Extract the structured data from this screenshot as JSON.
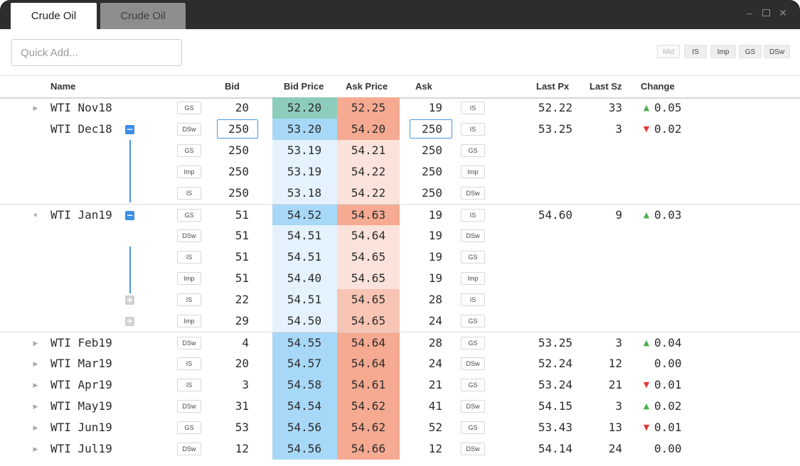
{
  "tabs": [
    {
      "label": "Crude Oil",
      "active": true
    },
    {
      "label": "Crude Oil",
      "active": false
    }
  ],
  "window_controls": [
    "minimize-icon",
    "maximize-icon",
    "close-icon"
  ],
  "toolbar": {
    "quick_add_placeholder": "Quick Add...",
    "source_buttons": [
      "Mid",
      "IS",
      "Imp",
      "GS",
      "DSw"
    ]
  },
  "columns": {
    "name": "Name",
    "bid": "Bid",
    "bid_price": "Bid Price",
    "ask_price": "Ask Price",
    "ask": "Ask",
    "last_px": "Last Px",
    "last_sz": "Last Sz",
    "change": "Change"
  },
  "colors": {
    "bid_dark": "#a8d8f8",
    "bid_light": "#e4f2fd",
    "bid_selected": "#8dcbbd",
    "ask_dark": "#f6aa92",
    "ask_light": "#fbe2da",
    "accent": "#4a96e3",
    "up": "#4caf50",
    "down": "#e53935"
  },
  "rows": [
    {
      "name": "WTI Nov18",
      "arrow": "collapsed",
      "bid_src": "GS",
      "bid": "20",
      "bid_price": "52.20",
      "ask_price": "52.25",
      "ask": "19",
      "ask_src": "IS",
      "last_px": "52.22",
      "last_sz": "33",
      "change": "0.05",
      "dir": "up",
      "bid_shade": "selected",
      "ask_shade": "dark",
      "sep": false
    },
    {
      "name": "WTI Dec18",
      "toggle": "minus",
      "bid_src": "DSw",
      "bid": "250",
      "bid_price": "53.20",
      "ask_price": "54.20",
      "ask": "250",
      "ask_src": "IS",
      "last_px": "53.25",
      "last_sz": "3",
      "change": "0.02",
      "dir": "down",
      "bid_shade": "dark",
      "ask_shade": "dark",
      "bid_edit": true,
      "ask_edit": true,
      "sep": false
    },
    {
      "name": "",
      "bid_src": "GS",
      "bid": "250",
      "bid_price": "53.19",
      "ask_price": "54.21",
      "ask": "250",
      "ask_src": "GS",
      "bid_shade": "light",
      "ask_shade": "light",
      "sep": false
    },
    {
      "name": "",
      "bid_src": "Imp",
      "bid": "250",
      "bid_price": "53.19",
      "ask_price": "54.22",
      "ask": "250",
      "ask_src": "Imp",
      "bid_shade": "light",
      "ask_shade": "light",
      "sep": false
    },
    {
      "name": "",
      "bid_src": "IS",
      "bid": "250",
      "bid_price": "53.18",
      "ask_price": "54.22",
      "ask": "250",
      "ask_src": "DSw",
      "bid_shade": "light",
      "ask_shade": "light",
      "sep": false
    },
    {
      "name": "WTI Jan19",
      "arrow": "expanded",
      "toggle": "minus",
      "bid_src": "GS",
      "bid": "51",
      "bid_price": "54.52",
      "ask_price": "54.63",
      "ask": "19",
      "ask_src": "IS",
      "last_px": "54.60",
      "last_sz": "9",
      "change": "0.03",
      "dir": "up",
      "bid_shade": "dark",
      "ask_shade": "dark",
      "sep": true
    },
    {
      "name": "",
      "bid_src": "DSw",
      "bid": "51",
      "bid_price": "54.51",
      "ask_price": "54.64",
      "ask": "19",
      "ask_src": "DSw",
      "bid_shade": "light",
      "ask_shade": "light",
      "sep": false
    },
    {
      "name": "",
      "bid_src": "IS",
      "bid": "51",
      "bid_price": "54.51",
      "ask_price": "54.65",
      "ask": "19",
      "ask_src": "GS",
      "bid_shade": "light",
      "ask_shade": "light",
      "sep": false
    },
    {
      "name": "",
      "bid_src": "Imp",
      "bid": "51",
      "bid_price": "54.40",
      "ask_price": "54.65",
      "ask": "19",
      "ask_src": "Imp",
      "bid_shade": "light",
      "ask_shade": "light",
      "sep": false
    },
    {
      "name": "",
      "toggle": "plus",
      "bid_src": "IS",
      "bid": "22",
      "bid_price": "54.51",
      "ask_price": "54.65",
      "ask": "28",
      "ask_src": "IS",
      "bid_shade": "light",
      "ask_shade": "mid",
      "sep": false
    },
    {
      "name": "",
      "toggle": "plus",
      "bid_src": "Imp",
      "bid": "29",
      "bid_price": "54.50",
      "ask_price": "54.65",
      "ask": "24",
      "ask_src": "GS",
      "bid_shade": "light",
      "ask_shade": "mid",
      "sep": false
    },
    {
      "name": "WTI Feb19",
      "arrow": "collapsed",
      "bid_src": "DSw",
      "bid": "4",
      "bid_price": "54.55",
      "ask_price": "54.64",
      "ask": "28",
      "ask_src": "GS",
      "last_px": "53.25",
      "last_sz": "3",
      "change": "0.04",
      "dir": "up",
      "bid_shade": "dark",
      "ask_shade": "dark",
      "sep": true
    },
    {
      "name": "WTI Mar19",
      "arrow": "collapsed",
      "bid_src": "IS",
      "bid": "20",
      "bid_price": "54.57",
      "ask_price": "54.64",
      "ask": "24",
      "ask_src": "DSw",
      "last_px": "52.24",
      "last_sz": "12",
      "change": "0.00",
      "dir": "none",
      "bid_shade": "dark",
      "ask_shade": "dark",
      "sep": false
    },
    {
      "name": "WTI Apr19",
      "arrow": "collapsed",
      "bid_src": "IS",
      "bid": "3",
      "bid_price": "54.58",
      "ask_price": "54.61",
      "ask": "21",
      "ask_src": "GS",
      "last_px": "53.24",
      "last_sz": "21",
      "change": "0.01",
      "dir": "down",
      "bid_shade": "dark",
      "ask_shade": "dark",
      "sep": false
    },
    {
      "name": "WTI May19",
      "arrow": "collapsed",
      "bid_src": "DSw",
      "bid": "31",
      "bid_price": "54.54",
      "ask_price": "54.62",
      "ask": "41",
      "ask_src": "DSw",
      "last_px": "54.15",
      "last_sz": "3",
      "change": "0.02",
      "dir": "up",
      "bid_shade": "dark",
      "ask_shade": "dark",
      "sep": false
    },
    {
      "name": "WTI Jun19",
      "arrow": "collapsed",
      "bid_src": "GS",
      "bid": "53",
      "bid_price": "54.56",
      "ask_price": "54.62",
      "ask": "52",
      "ask_src": "GS",
      "last_px": "53.43",
      "last_sz": "13",
      "change": "0.01",
      "dir": "down",
      "bid_shade": "dark",
      "ask_shade": "dark",
      "sep": false
    },
    {
      "name": "WTI Jul19",
      "arrow": "collapsed",
      "bid_src": "DSw",
      "bid": "12",
      "bid_price": "54.56",
      "ask_price": "54.66",
      "ask": "12",
      "ask_src": "DSw",
      "last_px": "54.14",
      "last_sz": "24",
      "change": "0.00",
      "dir": "none",
      "bid_shade": "dark",
      "ask_shade": "dark",
      "sep": false
    }
  ]
}
